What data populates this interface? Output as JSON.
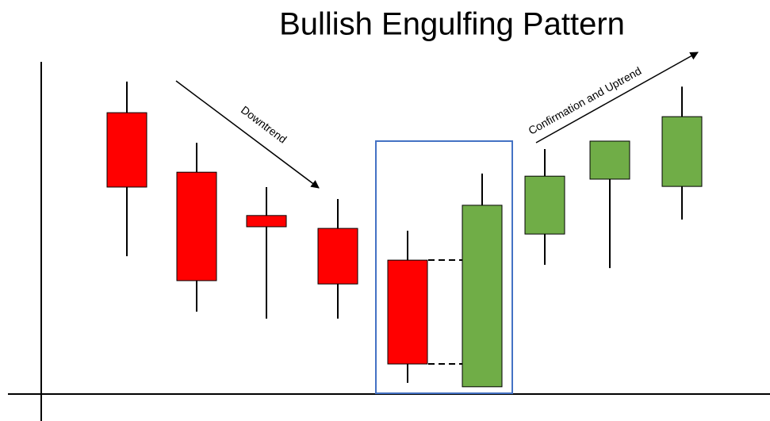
{
  "chart_data": {
    "type": "candlestick",
    "title": "Bullish Engulfing Pattern",
    "annotations": [
      "Downtrend",
      "Confirmation and Uptrend"
    ],
    "ylim": [
      0,
      100
    ],
    "up_color": "#70ad47",
    "down_color": "#ff0000",
    "open": [
      85.1,
      67.1,
      54.0,
      50.1,
      40.5,
      2.2,
      48.4,
      65.0,
      62.8
    ],
    "high": [
      94.5,
      76.0,
      62.6,
      59.0,
      49.4,
      66.7,
      74.1,
      76.5,
      93.0
    ],
    "low": [
      41.7,
      24.9,
      22.8,
      22.8,
      3.4,
      2.2,
      39.1,
      38.1,
      52.8
    ],
    "close": [
      62.6,
      34.3,
      50.6,
      33.3,
      9.1,
      57.1,
      65.9,
      76.5,
      83.9
    ]
  }
}
